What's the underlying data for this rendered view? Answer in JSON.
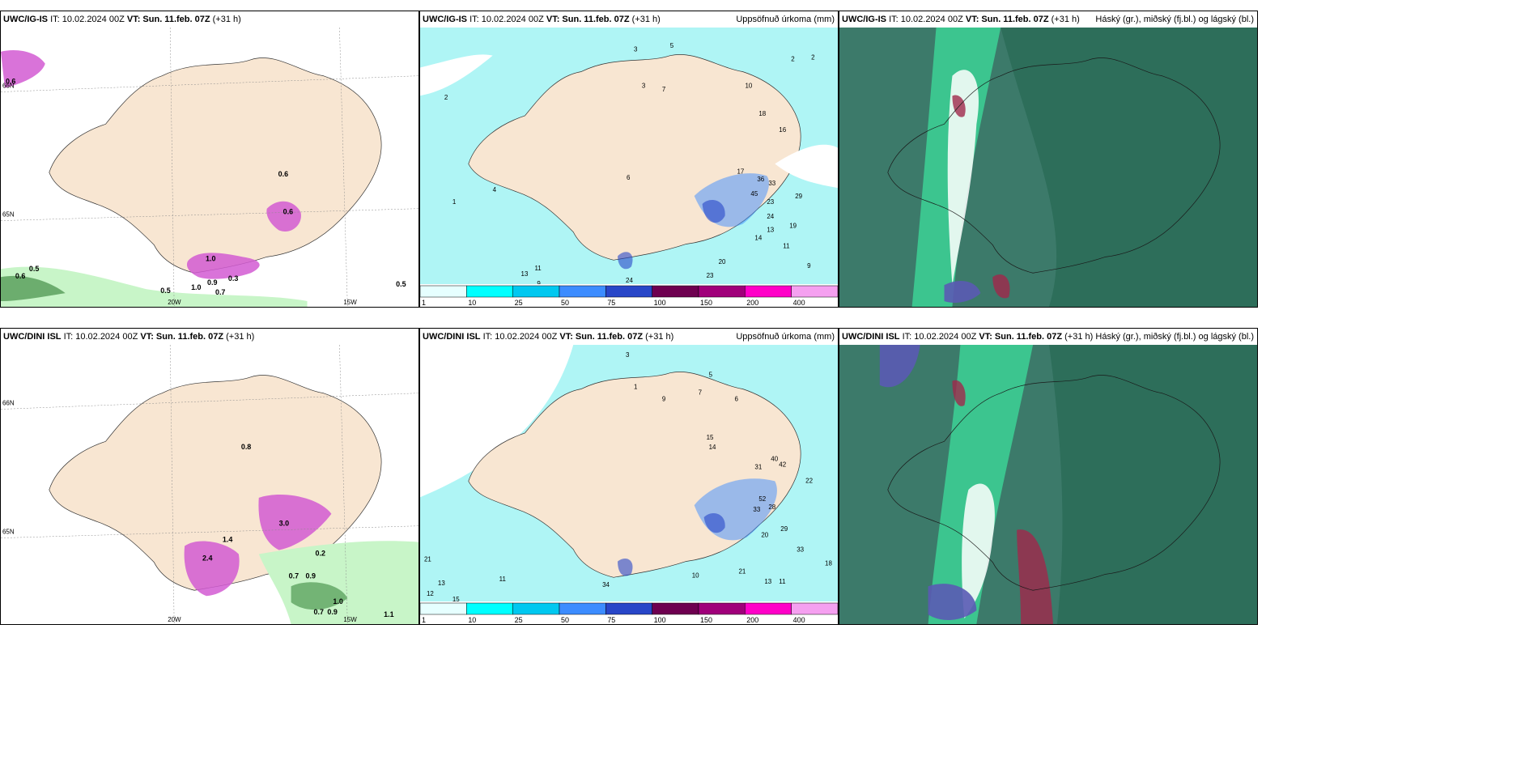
{
  "rows": [
    {
      "panels": [
        {
          "type": "wind",
          "model": "UWC/IG-IS",
          "it": "IT: 10.02.2024 00Z",
          "vt_label": "VT:",
          "vt": "Sun. 11.feb. 07Z",
          "lead": "(+31 h)",
          "title_right": "",
          "lon_labels": [
            "20W",
            "15W"
          ],
          "lat_labels": [
            "66N",
            "65N"
          ],
          "values": [
            "0.5",
            "0.6",
            "0.5",
            "1.0",
            "0.9",
            "0.3",
            "0.7",
            "0.5",
            "0.6",
            "1.0",
            "0.6",
            "0.6"
          ]
        },
        {
          "type": "precip",
          "model": "UWC/IG-IS",
          "it": "IT: 10.02.2024 00Z",
          "vt_label": "VT:",
          "vt": "Sun. 11.feb. 07Z",
          "lead": "(+31 h)",
          "title_right": "Uppsöfnuð úrkoma (mm)",
          "values": [
            "3",
            "5",
            "2",
            "2",
            "3",
            "7",
            "10",
            "18",
            "16",
            "17",
            "36",
            "33",
            "45",
            "23",
            "29",
            "24",
            "19",
            "14",
            "13",
            "11",
            "20",
            "23",
            "24",
            "9",
            "1",
            "2",
            "4",
            "6",
            "13",
            "11",
            "9"
          ]
        },
        {
          "type": "cloud",
          "model": "UWC/IG-IS",
          "it": "IT: 10.02.2024 00Z",
          "vt_label": "VT:",
          "vt": "Sun. 11.feb. 07Z",
          "lead": "(+31 h)",
          "title_right": "Háský (gr.), miðský (fj.bl.) og lágský (bl.)"
        }
      ]
    },
    {
      "panels": [
        {
          "type": "wind",
          "model": "UWC/DINI ISL",
          "it": "IT: 10.02.2024 00Z",
          "vt_label": "VT:",
          "vt": "Sun. 11.feb. 07Z",
          "lead": "(+31 h)",
          "title_right": "",
          "lon_labels": [
            "20W",
            "15W"
          ],
          "lat_labels": [
            "66N",
            "65N"
          ],
          "values": [
            "2.4",
            "1.4",
            "3.0",
            "0.2",
            "0.7",
            "0.9",
            "1.0",
            "0.7",
            "0.9",
            "1.1",
            "0.8"
          ]
        },
        {
          "type": "precip",
          "model": "UWC/DINI ISL",
          "it": "IT: 10.02.2024 00Z",
          "vt_label": "VT:",
          "vt": "Sun. 11.feb. 07Z",
          "lead": "(+31 h)",
          "title_right": "Uppsöfnuð úrkoma (mm)",
          "values": [
            "3",
            "5",
            "7",
            "1",
            "9",
            "6",
            "15",
            "14",
            "31",
            "40",
            "42",
            "52",
            "33",
            "28",
            "22",
            "20",
            "29",
            "33",
            "21",
            "13",
            "11",
            "10",
            "18",
            "34",
            "11",
            "12",
            "13",
            "15",
            "21"
          ]
        },
        {
          "type": "cloud",
          "model": "UWC/DINI ISL",
          "it": "IT: 10.02.2024 00Z",
          "vt_label": "VT:",
          "vt": "Sun. 11.feb. 07Z",
          "lead": "(+31 h)",
          "title_right": "Háský (gr.), miðský (fj.bl.) og lágský (bl.)"
        }
      ]
    }
  ],
  "colorbar": {
    "ticks": [
      "1",
      "10",
      "25",
      "50",
      "75",
      "100",
      "150",
      "200",
      "400"
    ],
    "colors": [
      "#e6ffff",
      "#00ffff",
      "#00c8f0",
      "#3c8cff",
      "#2846c8",
      "#6e0050",
      "#a0007a",
      "#ff00c8",
      "#f5a0f0"
    ]
  },
  "colors": {
    "land": "#f8e6d2",
    "sea_precip": "#aff5f5",
    "sea_wind": "#ffffff",
    "cloud_high": "#2d6e5a",
    "cloud_mid": "#3ce6a0",
    "cloud_low": "#5a5ab4",
    "wind_max": "#d25ad2"
  }
}
